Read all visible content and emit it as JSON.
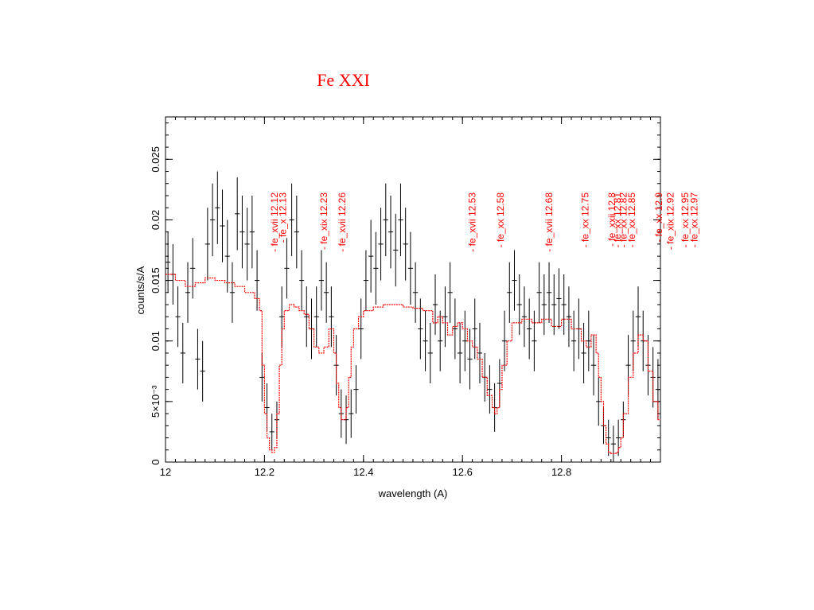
{
  "slide": {
    "title": "Fe XXI"
  },
  "chart_data": {
    "type": "line",
    "xlabel": "wavelength (A)",
    "ylabel": "counts/s/A",
    "xlim": [
      12.0,
      13.0
    ],
    "ylim": [
      0,
      0.0285
    ],
    "x_ticks": [
      {
        "value": 12.0,
        "label": "12"
      },
      {
        "value": 12.2,
        "label": "12.2"
      },
      {
        "value": 12.4,
        "label": "12.4"
      },
      {
        "value": 12.6,
        "label": "12.6"
      },
      {
        "value": 12.8,
        "label": "12.8"
      }
    ],
    "y_ticks": [
      {
        "value": 0,
        "label": "0"
      },
      {
        "value": 0.005,
        "label": "5×10⁻³"
      },
      {
        "value": 0.01,
        "label": "0.01"
      },
      {
        "value": 0.015,
        "label": "0.015"
      },
      {
        "value": 0.02,
        "label": "0.02"
      },
      {
        "value": 0.025,
        "label": "0.025"
      }
    ],
    "series": [
      {
        "style": "errorbars",
        "color": "#000000",
        "points": [
          [
            12.005,
            0.0165,
            0.0025
          ],
          [
            12.015,
            0.0155,
            0.0025
          ],
          [
            12.025,
            0.012,
            0.0025
          ],
          [
            12.035,
            0.009,
            0.0025
          ],
          [
            12.045,
            0.014,
            0.0025
          ],
          [
            12.055,
            0.016,
            0.0025
          ],
          [
            12.065,
            0.0085,
            0.0025
          ],
          [
            12.075,
            0.0075,
            0.0025
          ],
          [
            12.085,
            0.018,
            0.003
          ],
          [
            12.095,
            0.02,
            0.003
          ],
          [
            12.105,
            0.021,
            0.003
          ],
          [
            12.115,
            0.0195,
            0.003
          ],
          [
            12.125,
            0.017,
            0.003
          ],
          [
            12.135,
            0.014,
            0.0025
          ],
          [
            12.145,
            0.0205,
            0.003
          ],
          [
            12.155,
            0.019,
            0.003
          ],
          [
            12.165,
            0.018,
            0.003
          ],
          [
            12.175,
            0.019,
            0.003
          ],
          [
            12.185,
            0.015,
            0.0025
          ],
          [
            12.195,
            0.007,
            0.002
          ],
          [
            12.205,
            0.0045,
            0.002
          ],
          [
            12.215,
            0.0025,
            0.0015
          ],
          [
            12.225,
            0.0035,
            0.0015
          ],
          [
            12.235,
            0.012,
            0.0025
          ],
          [
            12.245,
            0.016,
            0.0025
          ],
          [
            12.255,
            0.02,
            0.003
          ],
          [
            12.265,
            0.019,
            0.003
          ],
          [
            12.275,
            0.015,
            0.0025
          ],
          [
            12.285,
            0.012,
            0.0025
          ],
          [
            12.295,
            0.011,
            0.0025
          ],
          [
            12.305,
            0.012,
            0.0025
          ],
          [
            12.315,
            0.015,
            0.0025
          ],
          [
            12.325,
            0.014,
            0.0025
          ],
          [
            12.335,
            0.012,
            0.0025
          ],
          [
            12.345,
            0.008,
            0.0025
          ],
          [
            12.355,
            0.004,
            0.002
          ],
          [
            12.365,
            0.0035,
            0.002
          ],
          [
            12.375,
            0.004,
            0.002
          ],
          [
            12.385,
            0.006,
            0.002
          ],
          [
            12.395,
            0.011,
            0.0025
          ],
          [
            12.405,
            0.015,
            0.0025
          ],
          [
            12.415,
            0.017,
            0.003
          ],
          [
            12.425,
            0.016,
            0.003
          ],
          [
            12.435,
            0.018,
            0.003
          ],
          [
            12.445,
            0.02,
            0.003
          ],
          [
            12.455,
            0.019,
            0.003
          ],
          [
            12.465,
            0.0175,
            0.003
          ],
          [
            12.475,
            0.02,
            0.003
          ],
          [
            12.485,
            0.018,
            0.003
          ],
          [
            12.495,
            0.016,
            0.003
          ],
          [
            12.505,
            0.014,
            0.0025
          ],
          [
            12.515,
            0.011,
            0.0025
          ],
          [
            12.525,
            0.01,
            0.0025
          ],
          [
            12.535,
            0.009,
            0.0025
          ],
          [
            12.545,
            0.013,
            0.0025
          ],
          [
            12.555,
            0.01,
            0.0025
          ],
          [
            12.565,
            0.012,
            0.0025
          ],
          [
            12.575,
            0.014,
            0.0025
          ],
          [
            12.585,
            0.011,
            0.0025
          ],
          [
            12.595,
            0.009,
            0.0025
          ],
          [
            12.605,
            0.01,
            0.0025
          ],
          [
            12.615,
            0.0085,
            0.0025
          ],
          [
            12.625,
            0.011,
            0.0025
          ],
          [
            12.635,
            0.009,
            0.0025
          ],
          [
            12.645,
            0.007,
            0.002
          ],
          [
            12.655,
            0.006,
            0.002
          ],
          [
            12.665,
            0.0045,
            0.002
          ],
          [
            12.675,
            0.0065,
            0.002
          ],
          [
            12.685,
            0.01,
            0.0025
          ],
          [
            12.695,
            0.014,
            0.0025
          ],
          [
            12.705,
            0.015,
            0.0025
          ],
          [
            12.715,
            0.013,
            0.0025
          ],
          [
            12.725,
            0.012,
            0.0025
          ],
          [
            12.735,
            0.011,
            0.0025
          ],
          [
            12.745,
            0.01,
            0.0025
          ],
          [
            12.755,
            0.014,
            0.0025
          ],
          [
            12.765,
            0.013,
            0.0025
          ],
          [
            12.775,
            0.014,
            0.0025
          ],
          [
            12.785,
            0.013,
            0.0025
          ],
          [
            12.795,
            0.0135,
            0.0025
          ],
          [
            12.805,
            0.013,
            0.0025
          ],
          [
            12.815,
            0.012,
            0.0025
          ],
          [
            12.825,
            0.01,
            0.0025
          ],
          [
            12.835,
            0.011,
            0.0025
          ],
          [
            12.845,
            0.009,
            0.0025
          ],
          [
            12.855,
            0.01,
            0.0025
          ],
          [
            12.865,
            0.008,
            0.0025
          ],
          [
            12.875,
            0.005,
            0.002
          ],
          [
            12.885,
            0.003,
            0.0015
          ],
          [
            12.895,
            0.002,
            0.0015
          ],
          [
            12.905,
            0.0015,
            0.0015
          ],
          [
            12.915,
            0.002,
            0.0015
          ],
          [
            12.925,
            0.0035,
            0.0015
          ],
          [
            12.935,
            0.008,
            0.0025
          ],
          [
            12.945,
            0.01,
            0.0025
          ],
          [
            12.955,
            0.012,
            0.0025
          ],
          [
            12.965,
            0.01,
            0.0025
          ],
          [
            12.975,
            0.008,
            0.0025
          ],
          [
            12.985,
            0.007,
            0.0025
          ],
          [
            12.995,
            0.006,
            0.0025
          ]
        ]
      },
      {
        "style": "step",
        "color": "#ff0000",
        "points": [
          [
            12.0,
            0.0155
          ],
          [
            12.02,
            0.015
          ],
          [
            12.04,
            0.0145
          ],
          [
            12.06,
            0.0148
          ],
          [
            12.08,
            0.0152
          ],
          [
            12.1,
            0.015
          ],
          [
            12.12,
            0.0148
          ],
          [
            12.14,
            0.0145
          ],
          [
            12.16,
            0.014
          ],
          [
            12.18,
            0.0135
          ],
          [
            12.19,
            0.0125
          ],
          [
            12.195,
            0.008
          ],
          [
            12.2,
            0.004
          ],
          [
            12.205,
            0.002
          ],
          [
            12.21,
            0.001
          ],
          [
            12.215,
            0.0008
          ],
          [
            12.22,
            0.0012
          ],
          [
            12.225,
            0.004
          ],
          [
            12.23,
            0.008
          ],
          [
            12.235,
            0.011
          ],
          [
            12.24,
            0.0125
          ],
          [
            12.25,
            0.013
          ],
          [
            12.26,
            0.0128
          ],
          [
            12.27,
            0.0125
          ],
          [
            12.28,
            0.0122
          ],
          [
            12.29,
            0.011
          ],
          [
            12.3,
            0.0095
          ],
          [
            12.31,
            0.009
          ],
          [
            12.32,
            0.0095
          ],
          [
            12.33,
            0.011
          ],
          [
            12.34,
            0.009
          ],
          [
            12.345,
            0.0065
          ],
          [
            12.35,
            0.0045
          ],
          [
            12.355,
            0.0035
          ],
          [
            12.36,
            0.0035
          ],
          [
            12.365,
            0.0045
          ],
          [
            12.37,
            0.007
          ],
          [
            12.375,
            0.0095
          ],
          [
            12.38,
            0.011
          ],
          [
            12.39,
            0.012
          ],
          [
            12.4,
            0.0125
          ],
          [
            12.42,
            0.0128
          ],
          [
            12.44,
            0.013
          ],
          [
            12.46,
            0.013
          ],
          [
            12.48,
            0.0128
          ],
          [
            12.5,
            0.0127
          ],
          [
            12.52,
            0.0125
          ],
          [
            12.54,
            0.0115
          ],
          [
            12.55,
            0.012
          ],
          [
            12.56,
            0.0115
          ],
          [
            12.57,
            0.0105
          ],
          [
            12.58,
            0.0112
          ],
          [
            12.59,
            0.0115
          ],
          [
            12.6,
            0.011
          ],
          [
            12.61,
            0.01
          ],
          [
            12.62,
            0.0095
          ],
          [
            12.63,
            0.0085
          ],
          [
            12.64,
            0.007
          ],
          [
            12.65,
            0.0055
          ],
          [
            12.66,
            0.0045
          ],
          [
            12.665,
            0.004
          ],
          [
            12.67,
            0.0045
          ],
          [
            12.675,
            0.006
          ],
          [
            12.68,
            0.008
          ],
          [
            12.69,
            0.01
          ],
          [
            12.7,
            0.0115
          ],
          [
            12.72,
            0.0118
          ],
          [
            12.74,
            0.0115
          ],
          [
            12.76,
            0.0118
          ],
          [
            12.78,
            0.0112
          ],
          [
            12.8,
            0.0118
          ],
          [
            12.82,
            0.011
          ],
          [
            12.84,
            0.01
          ],
          [
            12.85,
            0.0095
          ],
          [
            12.86,
            0.0105
          ],
          [
            12.87,
            0.009
          ],
          [
            12.875,
            0.007
          ],
          [
            12.88,
            0.005
          ],
          [
            12.885,
            0.003
          ],
          [
            12.89,
            0.0015
          ],
          [
            12.895,
            0.0008
          ],
          [
            12.9,
            0.0007
          ],
          [
            12.91,
            0.0008
          ],
          [
            12.915,
            0.0012
          ],
          [
            12.92,
            0.002
          ],
          [
            12.925,
            0.004
          ],
          [
            12.935,
            0.007
          ],
          [
            12.945,
            0.009
          ],
          [
            12.955,
            0.0105
          ],
          [
            12.965,
            0.01
          ],
          [
            12.975,
            0.0075
          ],
          [
            12.985,
            0.005
          ],
          [
            12.995,
            0.0035
          ],
          [
            13.0,
            0.0035
          ]
        ]
      }
    ],
    "line_labels": [
      {
        "wavelength": 12.22,
        "label": "fe_xvii 12.12",
        "pos": 12.22
      },
      {
        "wavelength": 12.23,
        "label": "fe_x 12.13",
        "pos": 12.237
      },
      {
        "wavelength": 12.32,
        "label": "fe_xix 12.23",
        "pos": 12.32
      },
      {
        "wavelength": 12.36,
        "label": "fe_xvii 12.26",
        "pos": 12.357
      },
      {
        "wavelength": 12.63,
        "label": "fe_xvii 12.53",
        "pos": 12.62
      },
      {
        "wavelength": 12.68,
        "label": "fe_xx 12.58",
        "pos": 12.677
      },
      {
        "wavelength": 12.78,
        "label": "fe_xvii 12.68",
        "pos": 12.775
      },
      {
        "wavelength": 12.85,
        "label": "fe_xx 12.75",
        "pos": 12.848
      },
      {
        "wavelength": 12.9,
        "label": "fe_xxii 12.8",
        "pos": 12.902
      },
      {
        "wavelength": 12.91,
        "label": "fe_xx 12.81",
        "pos": 12.913
      },
      {
        "wavelength": 12.92,
        "label": "fe_xx 12.82",
        "pos": 12.925
      },
      {
        "wavelength": 12.95,
        "label": "fe_xx 12.85",
        "pos": 12.942
      },
      {
        "wavelength": 13.0,
        "label": "fe_xx 12.9",
        "pos": 12.997
      },
      {
        "wavelength": 13.02,
        "label": "fe_xix 12.92",
        "pos": 13.02
      },
      {
        "wavelength": 13.05,
        "label": "fe_xx 12.95",
        "pos": 13.05
      },
      {
        "wavelength": 13.07,
        "label": "fe_xx 12.97",
        "pos": 13.068
      }
    ]
  }
}
